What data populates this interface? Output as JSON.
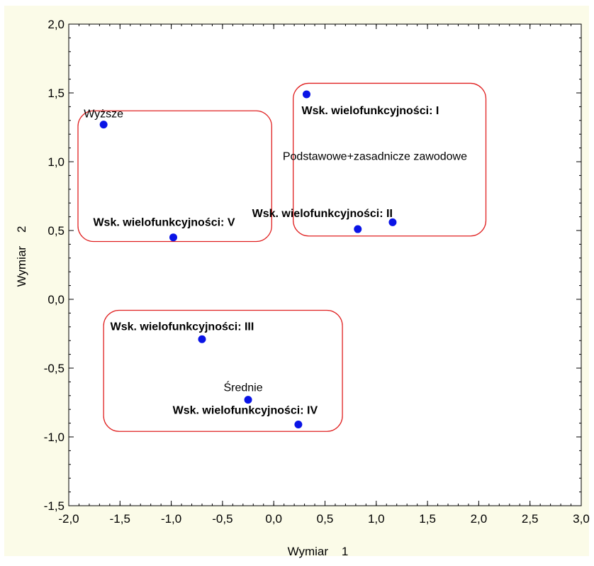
{
  "chart_data": {
    "type": "scatter",
    "xlabel": "Wymiar    1",
    "ylabel": "Wymiar    2",
    "xlim": [
      -2.0,
      3.0
    ],
    "ylim": [
      -1.5,
      2.0
    ],
    "x_ticks": [
      "-2,0",
      "-1,5",
      "-1,0",
      "-0,5",
      "0,0",
      "0,5",
      "1,0",
      "1,5",
      "2,0",
      "2,5",
      "3,0"
    ],
    "y_ticks": [
      "2,0",
      "1,5",
      "1,0",
      "0,5",
      "0,0",
      "-0,5",
      "-1,0",
      "-1,5"
    ],
    "grid": false,
    "point_color": "#0a14e6",
    "group_outline_color": "#e02020",
    "points": [
      {
        "x": -1.66,
        "y": 1.27,
        "label": "Wyższe",
        "bold": false
      },
      {
        "x": -0.98,
        "y": 0.45,
        "label": "Wsk. wielofunkcyjności: V",
        "bold": true
      },
      {
        "x": 0.32,
        "y": 1.49,
        "label": "Wsk. wielofunkcyjności: I",
        "bold": true
      },
      {
        "x": 1.16,
        "y": 0.56,
        "label": "Podstawowe+zasadnicze zawodowe",
        "bold": false
      },
      {
        "x": 0.82,
        "y": 0.51,
        "label": "Wsk. wielofunkcyjności: II",
        "bold": true
      },
      {
        "x": -0.7,
        "y": -0.29,
        "label": "Wsk. wielofunkcyjności: III",
        "bold": true
      },
      {
        "x": -0.25,
        "y": -0.73,
        "label": "Średnie",
        "bold": false
      },
      {
        "x": 0.24,
        "y": -0.91,
        "label": "Wsk. wielofunkcyjności: IV",
        "bold": true
      }
    ]
  }
}
